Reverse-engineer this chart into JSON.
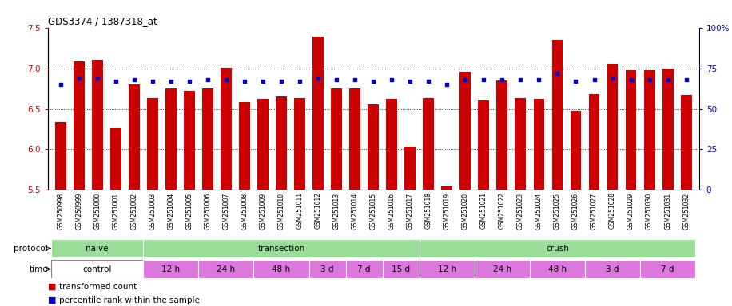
{
  "title": "GDS3374 / 1387318_at",
  "samples": [
    "GSM250998",
    "GSM250999",
    "GSM251000",
    "GSM251001",
    "GSM251002",
    "GSM251003",
    "GSM251004",
    "GSM251005",
    "GSM251006",
    "GSM251007",
    "GSM251008",
    "GSM251009",
    "GSM251010",
    "GSM251011",
    "GSM251012",
    "GSM251013",
    "GSM251014",
    "GSM251015",
    "GSM251016",
    "GSM251017",
    "GSM251018",
    "GSM251019",
    "GSM251020",
    "GSM251021",
    "GSM251022",
    "GSM251023",
    "GSM251024",
    "GSM251025",
    "GSM251026",
    "GSM251027",
    "GSM251028",
    "GSM251029",
    "GSM251030",
    "GSM251031",
    "GSM251032"
  ],
  "bar_values": [
    6.34,
    7.08,
    7.1,
    6.27,
    6.8,
    6.63,
    6.75,
    6.72,
    6.75,
    7.01,
    6.58,
    6.62,
    6.65,
    6.63,
    7.39,
    6.75,
    6.75,
    6.55,
    6.62,
    6.03,
    6.63,
    5.54,
    6.96,
    6.6,
    6.85,
    6.63,
    6.62,
    7.35,
    6.48,
    6.68,
    7.05,
    6.98,
    6.98,
    7.0,
    6.67
  ],
  "percentile_values": [
    65,
    69,
    69,
    67,
    68,
    67,
    67,
    67,
    68,
    68,
    67,
    67,
    67,
    67,
    69,
    68,
    68,
    67,
    68,
    67,
    67,
    65,
    68,
    68,
    68,
    68,
    68,
    72,
    67,
    68,
    69,
    68,
    68,
    68,
    68
  ],
  "ylim_left": [
    5.5,
    7.5
  ],
  "ylim_right": [
    0,
    100
  ],
  "yticks_left": [
    5.5,
    6.0,
    6.5,
    7.0,
    7.5
  ],
  "yticks_right": [
    0,
    25,
    50,
    75,
    100
  ],
  "bar_color": "#cc0000",
  "dot_color": "#0000cc",
  "bar_bottom": 5.5,
  "bg_color": "#ffffff",
  "axis_label_color_left": "#cc0000",
  "axis_label_color_right": "#0000cc",
  "proto_defs": [
    {
      "label": "naive",
      "start": 0,
      "end": 4,
      "color": "#99dd99"
    },
    {
      "label": "transection",
      "start": 5,
      "end": 19,
      "color": "#99dd99"
    },
    {
      "label": "crush",
      "start": 20,
      "end": 34,
      "color": "#99dd99"
    }
  ],
  "time_defs": [
    {
      "label": "control",
      "start": 0,
      "end": 4,
      "color": "#ffffff"
    },
    {
      "label": "12 h",
      "start": 5,
      "end": 7,
      "color": "#dd77dd"
    },
    {
      "label": "24 h",
      "start": 8,
      "end": 10,
      "color": "#dd77dd"
    },
    {
      "label": "48 h",
      "start": 11,
      "end": 13,
      "color": "#dd77dd"
    },
    {
      "label": "3 d",
      "start": 14,
      "end": 15,
      "color": "#dd77dd"
    },
    {
      "label": "7 d",
      "start": 16,
      "end": 17,
      "color": "#dd77dd"
    },
    {
      "label": "15 d",
      "start": 18,
      "end": 19,
      "color": "#dd77dd"
    },
    {
      "label": "12 h",
      "start": 20,
      "end": 22,
      "color": "#dd77dd"
    },
    {
      "label": "24 h",
      "start": 23,
      "end": 25,
      "color": "#dd77dd"
    },
    {
      "label": "48 h",
      "start": 26,
      "end": 28,
      "color": "#dd77dd"
    },
    {
      "label": "3 d",
      "start": 29,
      "end": 31,
      "color": "#dd77dd"
    },
    {
      "label": "7 d",
      "start": 32,
      "end": 34,
      "color": "#dd77dd"
    }
  ]
}
